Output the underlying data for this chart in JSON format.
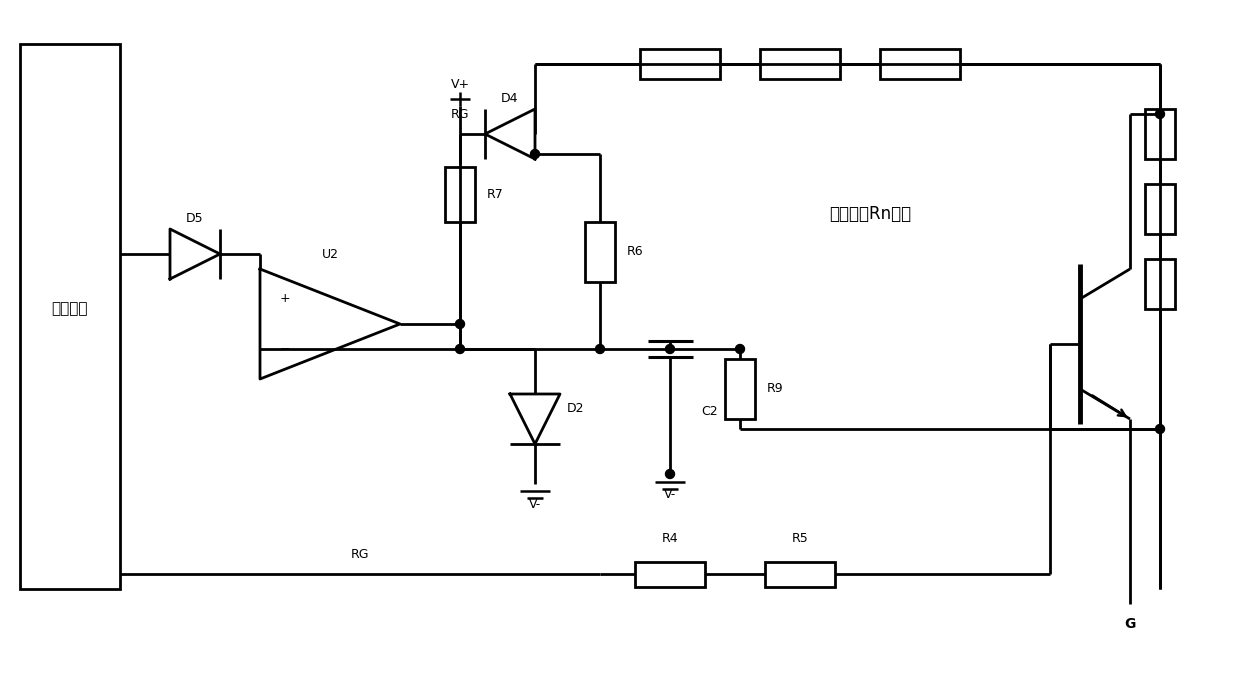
{
  "background_color": "#ffffff",
  "line_color": "#000000",
  "chinese_label": "电阻串以Rn表示",
  "driving_label": "驱动光耦",
  "ground_label": "G"
}
